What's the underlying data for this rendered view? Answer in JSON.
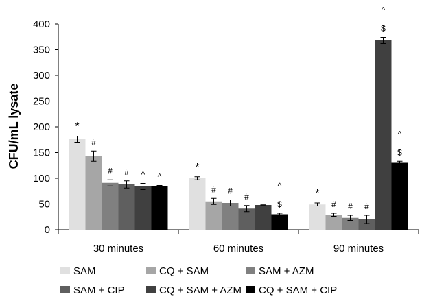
{
  "chart_data": {
    "type": "bar",
    "title": "",
    "xlabel": "",
    "ylabel": "CFU/mL lysate",
    "ylim": [
      0,
      400
    ],
    "yticks": [
      0,
      50,
      100,
      150,
      200,
      250,
      300,
      350,
      400
    ],
    "grid": false,
    "legend_position": "bottom",
    "categories": [
      "30 minutes",
      "60 minutes",
      "90 minutes"
    ],
    "series": [
      {
        "name": "SAM",
        "color": "#e0e0e0",
        "values": [
          176,
          100,
          49
        ],
        "errors": [
          6,
          3,
          3
        ],
        "annotations": [
          [
            "*"
          ],
          [
            "*"
          ],
          [
            "*"
          ]
        ]
      },
      {
        "name": "CQ + SAM",
        "color": "#a6a6a6",
        "values": [
          143,
          55,
          29
        ],
        "errors": [
          10,
          6,
          3
        ],
        "annotations": [
          [
            "#"
          ],
          [
            "#"
          ],
          [
            "#"
          ]
        ]
      },
      {
        "name": "SAM + AZM",
        "color": "#808080",
        "values": [
          91,
          52,
          23
        ],
        "errors": [
          6,
          6,
          5
        ],
        "annotations": [
          [
            "#"
          ],
          [
            "#"
          ],
          [
            "#"
          ]
        ]
      },
      {
        "name": "SAM + CIP",
        "color": "#5f5f5f",
        "values": [
          88,
          41,
          20
        ],
        "errors": [
          7,
          6,
          8
        ],
        "annotations": [
          [
            "#"
          ],
          [
            "#"
          ],
          [
            "#"
          ]
        ]
      },
      {
        "name": "CQ + SAM + AZM",
        "color": "#404040",
        "values": [
          84,
          48,
          368
        ],
        "errors": [
          6,
          1,
          6
        ],
        "annotations": [
          [
            "^"
          ],
          [],
          [
            "^",
            "$"
          ]
        ]
      },
      {
        "name": "CQ + SAM + CIP",
        "color": "#000000",
        "values": [
          85,
          30,
          130
        ],
        "errors": [
          1,
          2,
          3
        ],
        "annotations": [
          [
            "^"
          ],
          [
            "^",
            "$"
          ],
          [
            "^",
            "$"
          ]
        ]
      }
    ]
  }
}
